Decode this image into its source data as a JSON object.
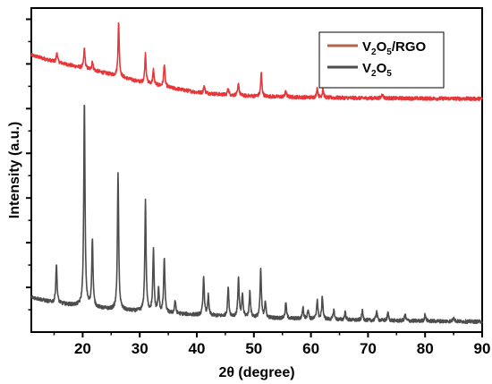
{
  "chart_data": {
    "type": "line",
    "xlabel": "2θ (degree)",
    "ylabel": "Intensity (a.u.)",
    "xlim": [
      11,
      90
    ],
    "xticks": [
      20,
      30,
      40,
      50,
      60,
      70,
      80,
      90
    ],
    "yticks_labeled": false,
    "legend_position": "top-right",
    "series": [
      {
        "name": "V2O5/RGO",
        "legend_main": "V",
        "legend_sub1": "2",
        "legend_mid": "O",
        "legend_sub2": "5",
        "legend_suffix": "/RGO",
        "color": "#e8373a",
        "legend_color": "#b5634a",
        "baseline": [
          [
            11,
            0.855
          ],
          [
            15,
            0.835
          ],
          [
            20,
            0.815
          ],
          [
            25,
            0.795
          ],
          [
            30,
            0.772
          ],
          [
            35,
            0.755
          ],
          [
            40,
            0.74
          ],
          [
            45,
            0.732
          ],
          [
            50,
            0.728
          ],
          [
            55,
            0.726
          ],
          [
            60,
            0.724
          ],
          [
            70,
            0.722
          ],
          [
            80,
            0.721
          ],
          [
            90,
            0.72
          ]
        ],
        "peaks": [
          [
            15.5,
            0.03
          ],
          [
            20.3,
            0.062
          ],
          [
            21.7,
            0.028
          ],
          [
            26.3,
            0.165
          ],
          [
            31.0,
            0.092
          ],
          [
            32.4,
            0.045
          ],
          [
            34.3,
            0.07
          ],
          [
            41.3,
            0.022
          ],
          [
            45.5,
            0.022
          ],
          [
            47.3,
            0.038
          ],
          [
            51.3,
            0.072
          ],
          [
            55.6,
            0.02
          ],
          [
            61.1,
            0.03
          ],
          [
            62.1,
            0.028
          ],
          [
            72.5,
            0.015
          ]
        ]
      },
      {
        "name": "V2O5",
        "legend_main": "V",
        "legend_sub1": "2",
        "legend_mid": "O",
        "legend_sub2": "5",
        "legend_suffix": "",
        "color": "#4d4d4d",
        "legend_color": "#4d4d4d",
        "baseline": [
          [
            11,
            0.108
          ],
          [
            15,
            0.09
          ],
          [
            20,
            0.08
          ],
          [
            25,
            0.07
          ],
          [
            30,
            0.064
          ],
          [
            35,
            0.058
          ],
          [
            40,
            0.053
          ],
          [
            50,
            0.045
          ],
          [
            60,
            0.04
          ],
          [
            70,
            0.036
          ],
          [
            80,
            0.034
          ],
          [
            90,
            0.032
          ]
        ],
        "peaks": [
          [
            15.4,
            0.12
          ],
          [
            20.3,
            0.63
          ],
          [
            21.7,
            0.21
          ],
          [
            26.2,
            0.42
          ],
          [
            31.0,
            0.34
          ],
          [
            32.4,
            0.19
          ],
          [
            33.3,
            0.07
          ],
          [
            34.3,
            0.17
          ],
          [
            36.2,
            0.04
          ],
          [
            41.2,
            0.12
          ],
          [
            42.0,
            0.06
          ],
          [
            45.5,
            0.09
          ],
          [
            47.3,
            0.12
          ],
          [
            48.0,
            0.07
          ],
          [
            49.3,
            0.08
          ],
          [
            51.2,
            0.15
          ],
          [
            52.0,
            0.05
          ],
          [
            55.6,
            0.05
          ],
          [
            58.6,
            0.035
          ],
          [
            59.5,
            0.03
          ],
          [
            61.1,
            0.06
          ],
          [
            62.0,
            0.07
          ],
          [
            64.0,
            0.03
          ],
          [
            66.0,
            0.025
          ],
          [
            69.0,
            0.03
          ],
          [
            71.5,
            0.03
          ],
          [
            73.5,
            0.025
          ],
          [
            76.5,
            0.02
          ],
          [
            80.0,
            0.02
          ],
          [
            85.0,
            0.015
          ]
        ]
      }
    ]
  }
}
